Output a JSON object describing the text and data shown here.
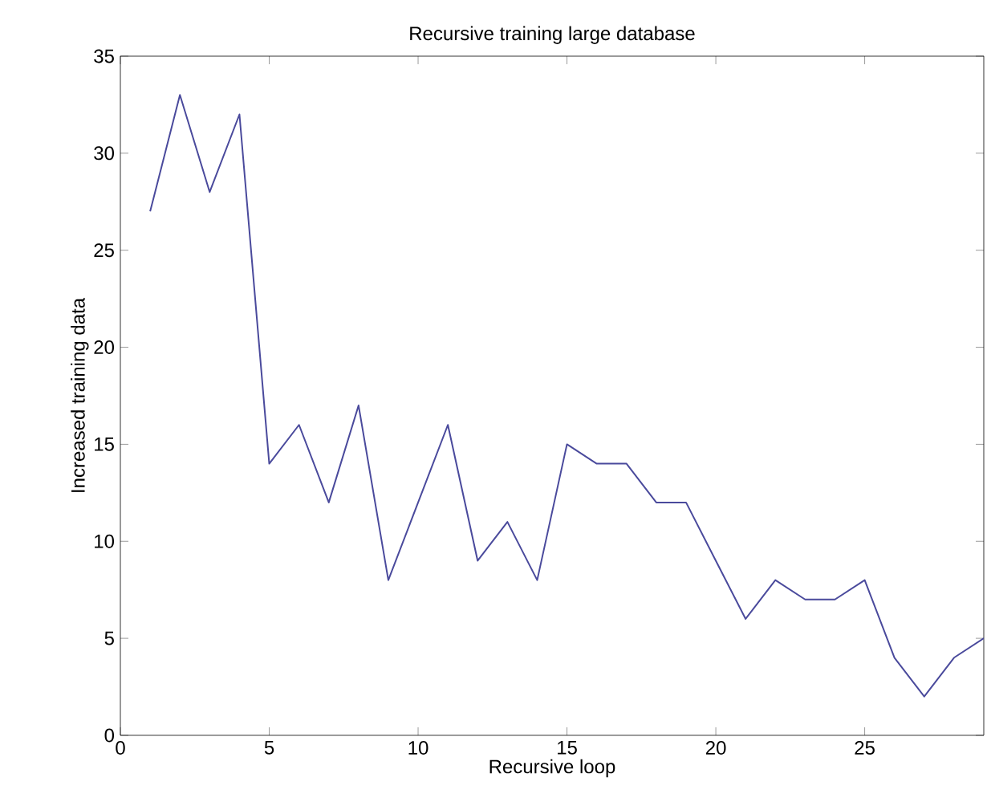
{
  "chart_data": {
    "type": "line",
    "title": "Recursive training large database",
    "xlabel": "Recursive loop",
    "ylabel": "Increased training data",
    "x": [
      1,
      2,
      3,
      4,
      5,
      6,
      7,
      8,
      9,
      10,
      11,
      12,
      13,
      14,
      15,
      16,
      17,
      18,
      19,
      20,
      21,
      22,
      23,
      24,
      25,
      26,
      27,
      28,
      29
    ],
    "series": [
      {
        "color": "#4a4a9c",
        "values": [
          27,
          33,
          28,
          32,
          14,
          16,
          12,
          17,
          8,
          12,
          16,
          9,
          11,
          8,
          15,
          14,
          14,
          12,
          12,
          9,
          6,
          8,
          7,
          7,
          8,
          4,
          2,
          4,
          5
        ]
      }
    ],
    "xlim": [
      0,
      29
    ],
    "ylim": [
      0,
      35
    ],
    "xticks": [
      0,
      5,
      10,
      15,
      20,
      25
    ],
    "yticks": [
      0,
      5,
      10,
      15,
      20,
      25,
      30,
      35
    ],
    "marker": "none",
    "line_style": "solid"
  }
}
